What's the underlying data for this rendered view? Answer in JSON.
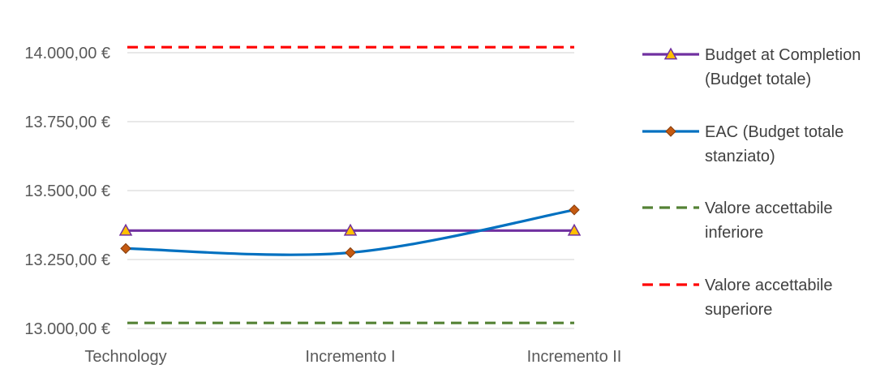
{
  "chart_data": {
    "type": "line",
    "categories": [
      "Technology",
      "Incremento I",
      "Incremento II"
    ],
    "ylim": [
      13000,
      14000
    ],
    "yticks": [
      13000,
      13250,
      13500,
      13750,
      14000
    ],
    "ytick_labels": [
      "13.000,00 €",
      "13.250,00 €",
      "13.500,00 €",
      "13.750,00 €",
      "14.000,00 €"
    ],
    "grid": true,
    "legend_position": "right",
    "series": [
      {
        "name_lines": [
          "Budget at Completion",
          "(Budget totale)"
        ],
        "values": [
          13355,
          13355,
          13355
        ],
        "color": "#7030A0",
        "line": "solid",
        "marker": "triangle",
        "marker_color": "#FFC000",
        "smooth": false
      },
      {
        "name_lines": [
          "EAC (Budget totale",
          "stanziato)"
        ],
        "values": [
          13290,
          13275,
          13430
        ],
        "color": "#0070C0",
        "line": "solid",
        "marker": "diamond",
        "marker_color": "#C55A11",
        "smooth": true
      },
      {
        "name_lines": [
          "Valore accettabile",
          "inferiore"
        ],
        "values": [
          13020,
          13020,
          13020
        ],
        "color": "#548235",
        "line": "dashed",
        "marker": "none",
        "smooth": false
      },
      {
        "name_lines": [
          "Valore accettabile",
          "superiore"
        ],
        "values": [
          14020,
          14020,
          14020
        ],
        "color": "#FF0000",
        "line": "dashed",
        "marker": "none",
        "smooth": false
      }
    ]
  }
}
